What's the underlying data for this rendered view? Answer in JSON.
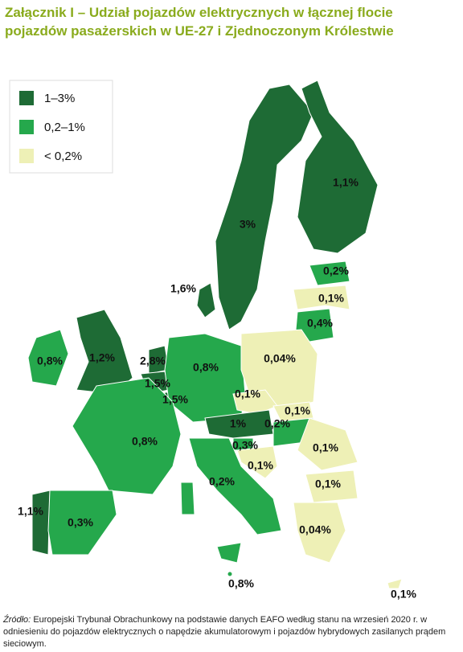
{
  "title": "Załącznik I – Udział pojazdów elektrycznych w łącznej flocie pojazdów pasażerskich w UE-27 i Zjednoczonym Królestwie",
  "legend": [
    {
      "label": "1–3%",
      "color": "#1e6b35"
    },
    {
      "label": "0,2–1%",
      "color": "#25a84c"
    },
    {
      "label": "< 0,2%",
      "color": "#eef0b6"
    }
  ],
  "regions": [
    {
      "label": "3%",
      "color": "#1e6b35"
    },
    {
      "label": "1,1%",
      "color": "#1e6b35"
    },
    {
      "label": "0,2%",
      "color": "#25a84c"
    },
    {
      "label": "0,1%",
      "color": "#eef0b6"
    },
    {
      "label": "0,4%",
      "color": "#25a84c"
    },
    {
      "label": "1,6%",
      "color": "#1e6b35"
    },
    {
      "label": "0,8%",
      "color": "#25a84c"
    },
    {
      "label": "1,2%",
      "color": "#1e6b35"
    },
    {
      "label": "2,8%",
      "color": "#1e6b35"
    },
    {
      "label": "1,5%",
      "color": "#1e6b35"
    },
    {
      "label": "1,5%",
      "color": "#1e6b35"
    },
    {
      "label": "0,8%",
      "color": "#25a84c"
    },
    {
      "label": "0,04%",
      "color": "#eef0b6"
    },
    {
      "label": "0,1%",
      "color": "#eef0b6"
    },
    {
      "label": "0,1%",
      "color": "#eef0b6"
    },
    {
      "label": "1%",
      "color": "#1e6b35"
    },
    {
      "label": "0,2%",
      "color": "#25a84c"
    },
    {
      "label": "0,3%",
      "color": "#25a84c"
    },
    {
      "label": "0,1%",
      "color": "#eef0b6"
    },
    {
      "label": "0,8%",
      "color": "#25a84c"
    },
    {
      "label": "0,1%",
      "color": "#eef0b6"
    },
    {
      "label": "0,1%",
      "color": "#eef0b6"
    },
    {
      "label": "0,2%",
      "color": "#25a84c"
    },
    {
      "label": "1,1%",
      "color": "#1e6b35"
    },
    {
      "label": "0,3%",
      "color": "#25a84c"
    },
    {
      "label": "0,04%",
      "color": "#eef0b6"
    },
    {
      "label": "0,8%",
      "color": "#25a84c"
    },
    {
      "label": "0,1%",
      "color": "#eef0b6"
    }
  ],
  "source": {
    "prefix": "Źródło:",
    "text": "Europejski Trybunał Obrachunkowy na podstawie danych EAFO według stanu na wrzesień 2020 r. w odniesieniu do pojazdów elektrycznych o napędzie akumulatorowym i pojazdów hybrydowych zasilanych prądem sieciowym."
  }
}
